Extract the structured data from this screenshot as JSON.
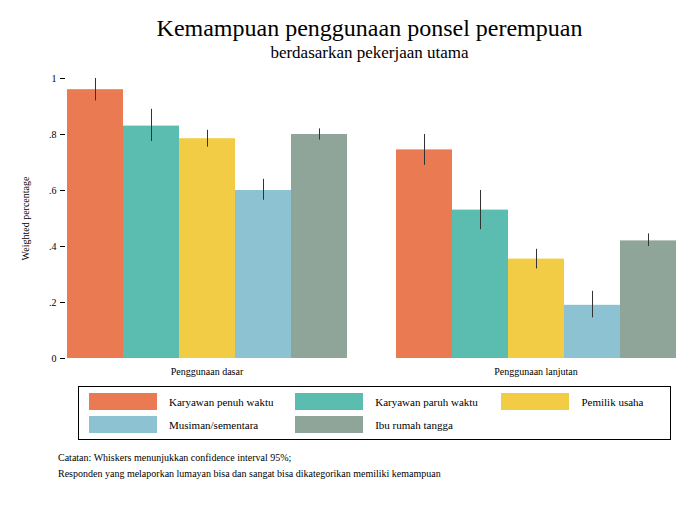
{
  "chart_data": {
    "type": "bar",
    "title": "Kemampuan penggunaan ponsel perempuan",
    "subtitle": "berdasarkan pekerjaan utama",
    "y_label": "Weighted percentage",
    "categories": [
      "Penggunaan dasar",
      "Penggunaan lanjutan"
    ],
    "series": [
      {
        "name": "Karyawan penuh waktu",
        "color": "#e97a52",
        "values": [
          0.96,
          0.745
        ],
        "ci_low": [
          0.92,
          0.69
        ],
        "ci_high": [
          1.0,
          0.8
        ]
      },
      {
        "name": "Karyawan paruh waktu",
        "color": "#5bbcb0",
        "values": [
          0.83,
          0.53
        ],
        "ci_low": [
          0.775,
          0.46
        ],
        "ci_high": [
          0.89,
          0.6
        ]
      },
      {
        "name": "Pemilik usaha",
        "color": "#f3cc45",
        "values": [
          0.785,
          0.355
        ],
        "ci_low": [
          0.755,
          0.32
        ],
        "ci_high": [
          0.815,
          0.39
        ]
      },
      {
        "name": "Musiman/sementara",
        "color": "#8dc2d3",
        "values": [
          0.6,
          0.19
        ],
        "ci_low": [
          0.565,
          0.145
        ],
        "ci_high": [
          0.64,
          0.24
        ]
      },
      {
        "name": "Ibu rumah tangga",
        "color": "#8fa59a",
        "values": [
          0.8,
          0.42
        ],
        "ci_low": [
          0.78,
          0.4
        ],
        "ci_high": [
          0.82,
          0.445
        ]
      }
    ],
    "ylim": [
      0,
      1
    ],
    "yticks": [
      0,
      {
        "value": 0.2,
        "label": ".2"
      },
      {
        "value": 0.4,
        "label": ".4"
      },
      {
        "value": 0.6,
        "label": ".6"
      },
      {
        "value": 0.8,
        "label": ".8"
      },
      1
    ],
    "grid": false,
    "legend": "bottom",
    "notes": [
      "Catatan: Whiskers menunjukkan confidence interval 95%;",
      "Responden yang melaporkan lumayan bisa dan sangat bisa dikategorikan memiliki kemampuan"
    ]
  }
}
